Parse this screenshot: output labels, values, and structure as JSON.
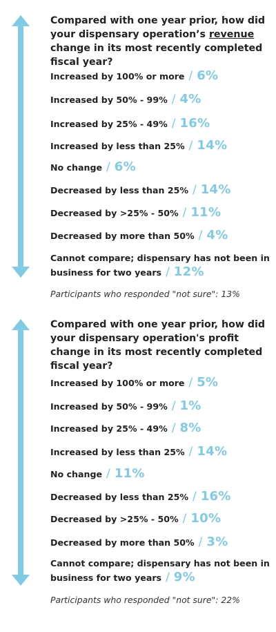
{
  "colors": {
    "accent": "#7fcbe6",
    "text": "#222222"
  },
  "sections": [
    {
      "question_before": "Compared with one year prior, how did your dispensary operation’s ",
      "question_underlined": "revenue",
      "question_after": " change in its most recently completed fiscal year?",
      "answers": [
        {
          "label": "Increased by 100% or more",
          "value": "6%"
        },
        {
          "label": "Increased by 50% - 99%",
          "value": "4%"
        },
        {
          "label": "Increased by 25% - 49%",
          "value": "16%"
        },
        {
          "label": "Increased by less than 25%",
          "value": "14%"
        },
        {
          "label": "No change",
          "value": "6%"
        },
        {
          "label": "Decreased by less than 25%",
          "value": "14%"
        },
        {
          "label": "Decreased by >25% - 50%",
          "value": "11%"
        },
        {
          "label": "Decreased by more than 50%",
          "value": "4%"
        },
        {
          "label": "Cannot compare; dispensary has not been in business for two years",
          "value": "12%"
        }
      ],
      "note": "Participants who responded \"not sure\": 13%"
    },
    {
      "question_before": "Compared with one year prior, how did your dispensary operation's profit change in its most recently completed fiscal year?",
      "question_underlined": "",
      "question_after": "",
      "answers": [
        {
          "label": "Increased by 100% or more",
          "value": "5%"
        },
        {
          "label": "Increased by 50% - 99%",
          "value": "1%"
        },
        {
          "label": "Increased by 25% - 49%",
          "value": "8%"
        },
        {
          "label": "Increased by less than 25%",
          "value": "14%"
        },
        {
          "label": "No change",
          "value": "11%"
        },
        {
          "label": "Decreased by less than 25%",
          "value": "16%"
        },
        {
          "label": "Decreased by >25% - 50%",
          "value": "10%"
        },
        {
          "label": "Decreased by more than 50%",
          "value": "3%"
        },
        {
          "label": "Cannot compare; dispensary has not been in business for two years",
          "value": "9%"
        }
      ],
      "note": "Participants who responded \"not sure\": 22%"
    }
  ]
}
